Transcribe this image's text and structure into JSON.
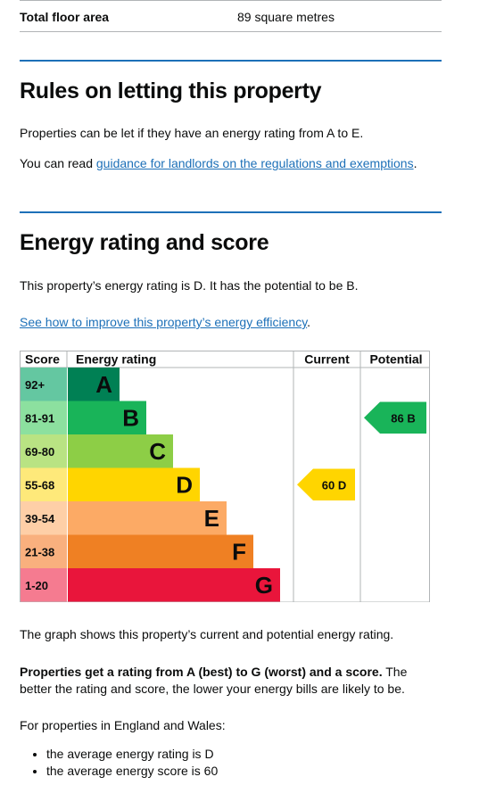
{
  "floor_area": {
    "label": "Total floor area",
    "value": "89 square metres"
  },
  "letting": {
    "heading": "Rules on letting this property",
    "text": "Properties can be let if they have an energy rating from A to E.",
    "read_prefix": "You can read ",
    "link_text": "guidance for landlords on the regulations and exemptions",
    "read_suffix": "."
  },
  "energy": {
    "heading": "Energy rating and score",
    "summary": "This property’s energy rating is D. It has the potential to be B.",
    "improve_link": "See how to improve this property’s energy efficiency",
    "improve_suffix": ".",
    "graph_caption": "The graph shows this property’s current and potential energy rating.",
    "rating_bold": "Properties get a rating from A (best) to G (worst) and a score.",
    "rating_rest": " The better the rating and score, the lower your energy bills are likely to be.",
    "england_wales": "For properties in England and Wales:",
    "averages": [
      "the average energy rating is D",
      "the average energy score is 60"
    ]
  },
  "chart_data": {
    "type": "table",
    "headers": {
      "score": "Score",
      "rating": "Energy rating",
      "current": "Current",
      "potential": "Potential"
    },
    "bands": [
      {
        "score": "92+",
        "letter": "A",
        "color": "#008054",
        "score_bg": "#64c7a1"
      },
      {
        "score": "81-91",
        "letter": "B",
        "color": "#19b459",
        "score_bg": "#8ce09f"
      },
      {
        "score": "69-80",
        "letter": "C",
        "color": "#8dce46",
        "score_bg": "#b9e383"
      },
      {
        "score": "55-68",
        "letter": "D",
        "color": "#ffd500",
        "score_bg": "#fee97a"
      },
      {
        "score": "39-54",
        "letter": "E",
        "color": "#fcaa65",
        "score_bg": "#fecfa7"
      },
      {
        "score": "21-38",
        "letter": "F",
        "color": "#ef8023",
        "score_bg": "#f9b07e"
      },
      {
        "score": "1-20",
        "letter": "G",
        "color": "#e9153b",
        "score_bg": "#f57b90"
      }
    ],
    "current": {
      "score": 60,
      "letter": "D",
      "label": "60  D"
    },
    "potential": {
      "score": 86,
      "letter": "B",
      "label": "86  B"
    }
  }
}
